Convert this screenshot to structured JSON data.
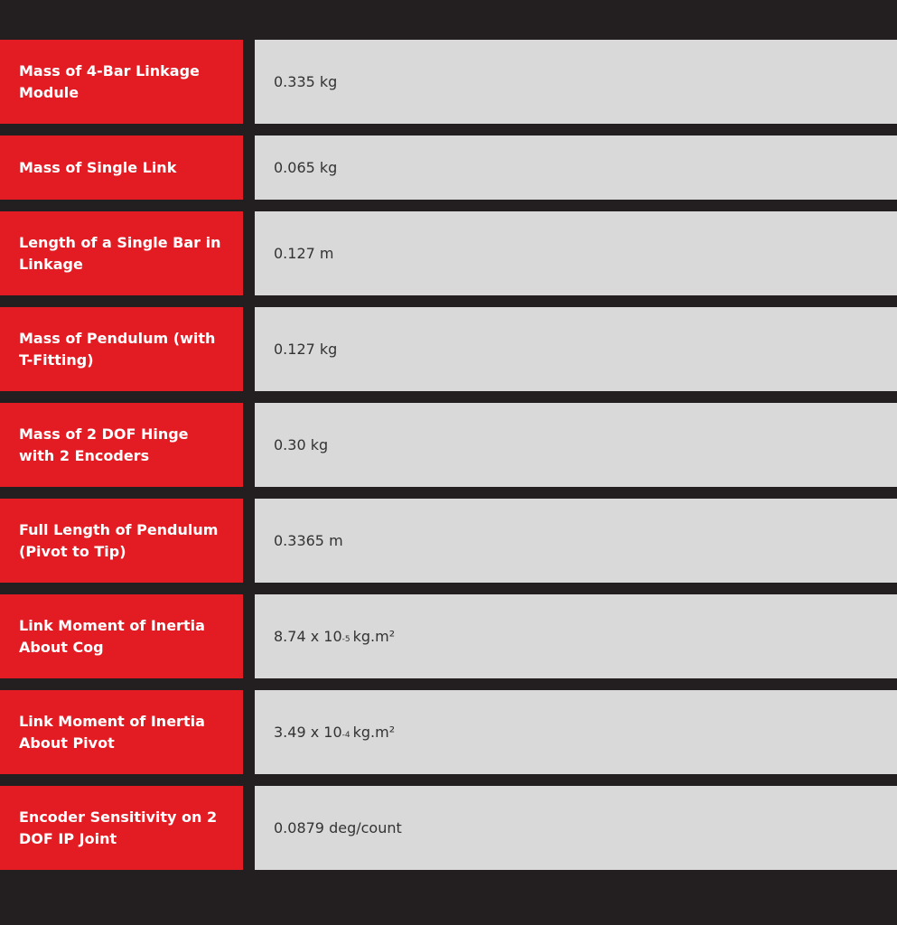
{
  "table": {
    "rows": [
      {
        "label": "Mass of 4-Bar Linkage Module",
        "value": "0.335 kg"
      },
      {
        "label": "Mass of Single Link",
        "value": "0.065 kg"
      },
      {
        "label": "Length of a Single Bar in Linkage",
        "value": "0.127 m"
      },
      {
        "label": "Mass of Pendulum (with T-Fitting)",
        "value": "0.127 kg"
      },
      {
        "label": "Mass of 2 DOF Hinge with 2 Encoders",
        "value": "0.30 kg"
      },
      {
        "label": "Full Length of Pendulum (Pivot to Tip)",
        "value": "0.3365 m"
      },
      {
        "label": "Link Moment of Inertia About Cog",
        "value": {
          "base": "8.74 x 10",
          "exponent": "-5",
          "unit": "kg.m²"
        }
      },
      {
        "label": "Link Moment of Inertia About Pivot",
        "value": {
          "base": "3.49 x 10",
          "exponent": "-4",
          "unit": "kg.m²"
        }
      },
      {
        "label": "Encoder Sensitivity on 2 DOF IP Joint",
        "value": "0.0879 deg/count"
      }
    ]
  }
}
